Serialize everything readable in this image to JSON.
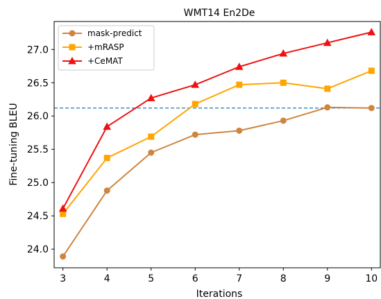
{
  "chart_data": {
    "type": "line",
    "title": "WMT14 En2De",
    "xlabel": "Iterations",
    "ylabel": "Fine-tuning BLEU",
    "x": [
      3,
      4,
      5,
      6,
      7,
      8,
      9,
      10
    ],
    "xlim": [
      2.8,
      10.2
    ],
    "ylim": [
      23.72,
      27.42
    ],
    "yticks": [
      24.0,
      24.5,
      25.0,
      25.5,
      26.0,
      26.5,
      27.0
    ],
    "ytick_labels": [
      "24.0",
      "24.5",
      "25.0",
      "25.5",
      "26.0",
      "26.5",
      "27.0"
    ],
    "xtick_labels": [
      "3",
      "4",
      "5",
      "6",
      "7",
      "8",
      "9",
      "10"
    ],
    "legend_position": "top-left",
    "grid": false,
    "reference_line": {
      "y": 26.12,
      "color": "#1f77b4",
      "style": "dashed"
    },
    "series": [
      {
        "name": "mask-predict",
        "color": "#cd853f",
        "marker": "circle",
        "values": [
          23.89,
          24.88,
          25.45,
          25.72,
          25.78,
          25.93,
          26.13,
          26.12
        ]
      },
      {
        "name": "+mRASP",
        "color": "#ffa500",
        "marker": "square",
        "values": [
          24.53,
          25.37,
          25.69,
          26.18,
          26.47,
          26.5,
          26.41,
          26.68
        ]
      },
      {
        "name": "+CeMAT",
        "color": "#ee1111",
        "marker": "triangle",
        "values": [
          24.61,
          25.84,
          26.27,
          26.47,
          26.74,
          26.94,
          27.1,
          27.26
        ]
      }
    ]
  }
}
